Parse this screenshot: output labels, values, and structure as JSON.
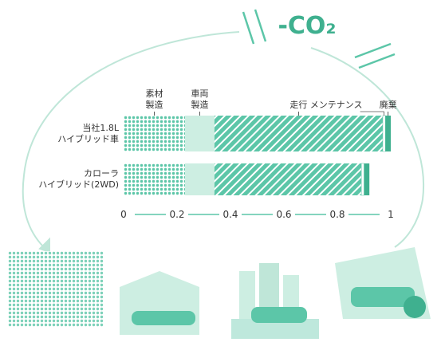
{
  "chart_data": {
    "type": "stacked-barh",
    "annotation": "-CO₂",
    "categories": [
      "当社1.8L\nハイブリッド車",
      "カローラ\nハイブリッド(2WD)"
    ],
    "series": [
      {
        "name": "素材\n製造",
        "color": "#5cc6a8",
        "values": [
          0.23,
          0.23
        ]
      },
      {
        "name": "車両\n製造",
        "color": "#cdeee2",
        "values": [
          0.11,
          0.11
        ]
      },
      {
        "name": "走行",
        "color": "#5cc6a8",
        "values": [
          0.63,
          0.55
        ]
      },
      {
        "name": "メンテナンス",
        "color": "#ffffff",
        "values": [
          0.01,
          0.01
        ]
      },
      {
        "name": "廃棄",
        "color": "#3fb08f",
        "values": [
          0.02,
          0.02
        ]
      }
    ],
    "xlim": [
      0,
      1
    ],
    "xticks": [
      0,
      0.2,
      0.4,
      0.6,
      0.8,
      1
    ]
  }
}
